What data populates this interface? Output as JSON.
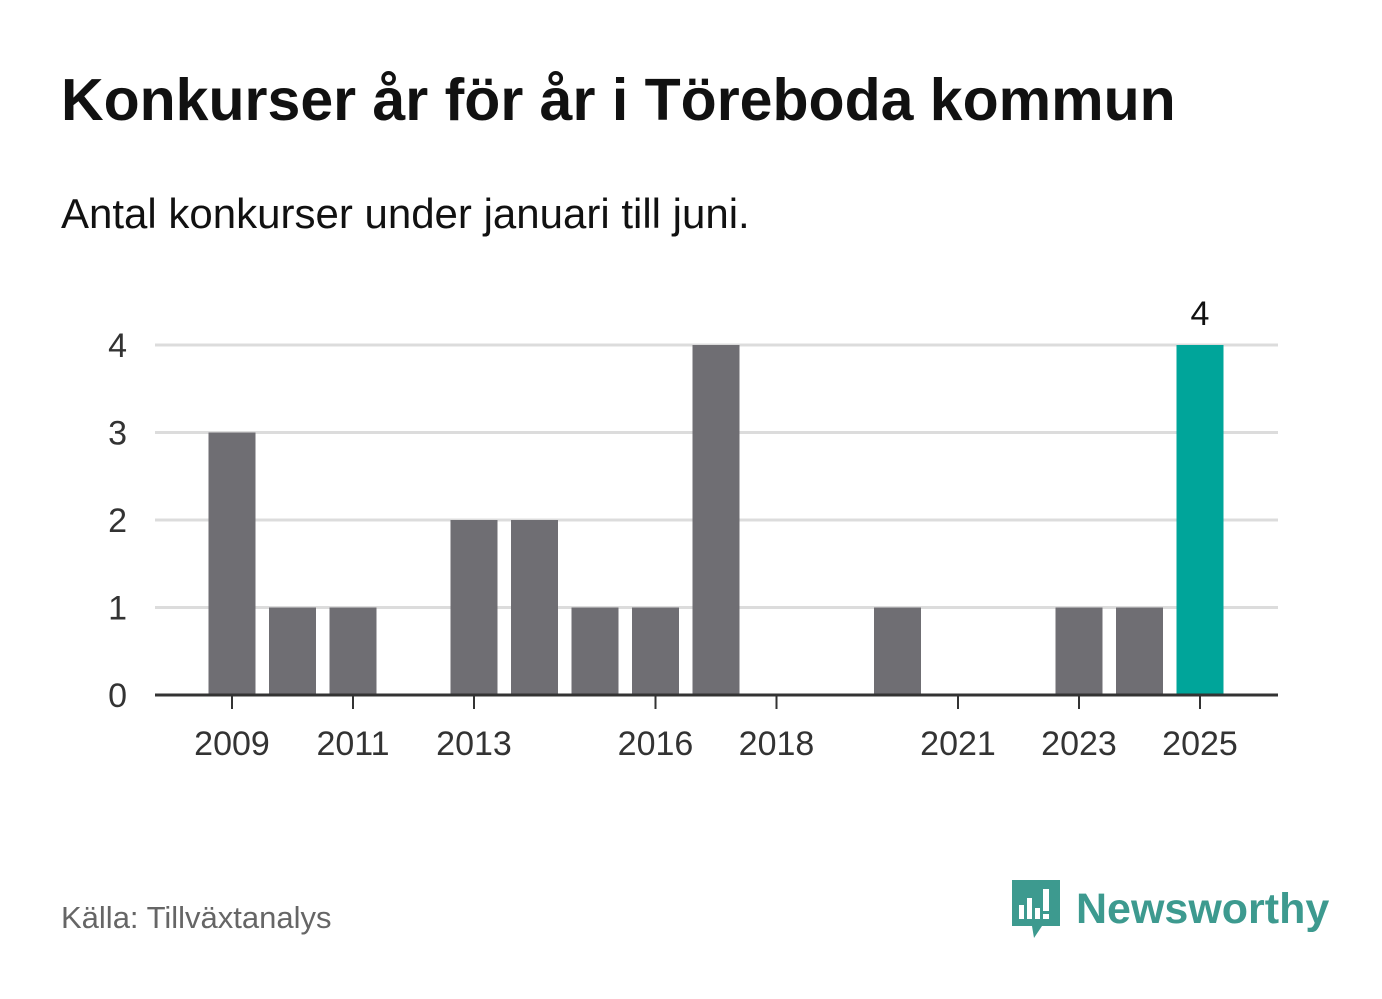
{
  "header": {
    "title": "Konkurser år för år i Töreboda kommun",
    "subtitle": "Antal konkurser under januari till juni."
  },
  "footer": {
    "source": "Källa: Tillväxtanalys",
    "brand": "Newsworthy",
    "brand_icon": "bar-chart-speech-bubble-icon"
  },
  "colors": {
    "bar": "#6f6e73",
    "highlight": "#00a59a",
    "grid": "#dcdcdc",
    "axis": "#333333",
    "brand": "#3d9a8f"
  },
  "chart_data": {
    "type": "bar",
    "title": "Konkurser år för år i Töreboda kommun",
    "subtitle": "Antal konkurser under januari till juni.",
    "categories": [
      2009,
      2010,
      2011,
      2012,
      2013,
      2014,
      2015,
      2016,
      2017,
      2018,
      2019,
      2020,
      2021,
      2022,
      2023,
      2024,
      2025
    ],
    "values": [
      3,
      1,
      1,
      0,
      2,
      2,
      1,
      1,
      4,
      0,
      0,
      1,
      0,
      0,
      1,
      1,
      4
    ],
    "highlight_category": 2025,
    "highlight_label": "4",
    "xticks": [
      2009,
      2011,
      2013,
      2016,
      2018,
      2021,
      2023,
      2025
    ],
    "yticks": [
      0,
      1,
      2,
      3,
      4
    ],
    "ylim": [
      0,
      4
    ],
    "xlabel": "",
    "ylabel": "",
    "grid": true,
    "legend": "none"
  }
}
